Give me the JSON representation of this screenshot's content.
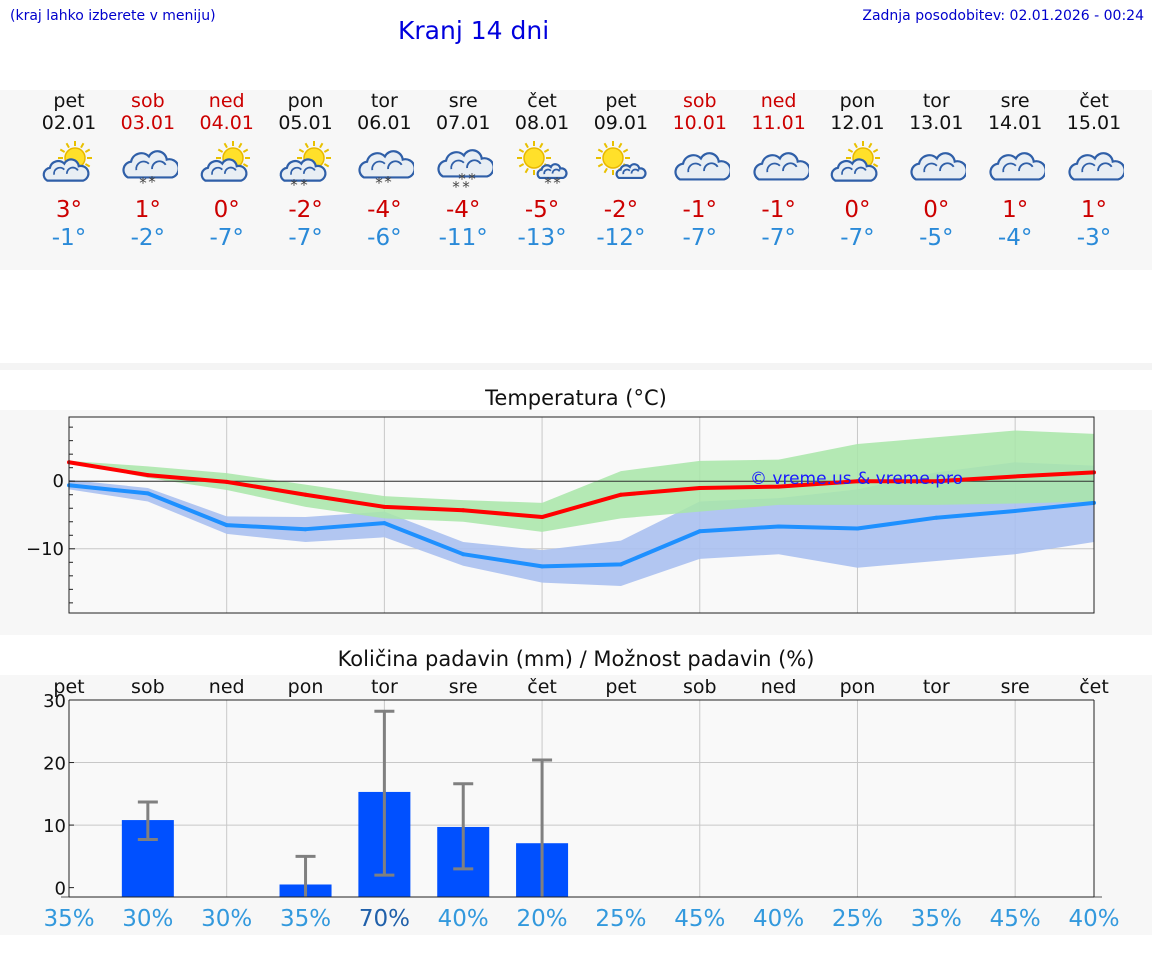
{
  "header": {
    "note": "(kraj lahko izberete v meniju)",
    "title": "Kranj 14 dni",
    "updated": "Zadnja posodobitev: 02.01.2026 - 00:24"
  },
  "days": [
    {
      "name": "pet",
      "date": "02.01",
      "weekend": false,
      "icon": "sun-cloud-icon",
      "tmax": "3°",
      "tmin": "-1°"
    },
    {
      "name": "sob",
      "date": "03.01",
      "weekend": true,
      "icon": "cloud-snow-icon",
      "tmax": "1°",
      "tmin": "-2°"
    },
    {
      "name": "ned",
      "date": "04.01",
      "weekend": true,
      "icon": "sun-cloud-icon",
      "tmax": "0°",
      "tmin": "-7°"
    },
    {
      "name": "pon",
      "date": "05.01",
      "weekend": false,
      "icon": "sun-cloud-snow-icon",
      "tmax": "-2°",
      "tmin": "-7°"
    },
    {
      "name": "tor",
      "date": "06.01",
      "weekend": false,
      "icon": "cloud-snow-icon",
      "tmax": "-4°",
      "tmin": "-6°"
    },
    {
      "name": "sre",
      "date": "07.01",
      "weekend": false,
      "icon": "cloud-heavy-snow-icon",
      "tmax": "-4°",
      "tmin": "-11°"
    },
    {
      "name": "čet",
      "date": "08.01",
      "weekend": false,
      "icon": "sun-small-cloud-snow-icon",
      "tmax": "-5°",
      "tmin": "-13°"
    },
    {
      "name": "pet",
      "date": "09.01",
      "weekend": false,
      "icon": "sun-small-cloud-icon",
      "tmax": "-2°",
      "tmin": "-12°"
    },
    {
      "name": "sob",
      "date": "10.01",
      "weekend": true,
      "icon": "cloud-icon",
      "tmax": "-1°",
      "tmin": "-7°"
    },
    {
      "name": "ned",
      "date": "11.01",
      "weekend": true,
      "icon": "cloud-icon",
      "tmax": "-1°",
      "tmin": "-7°"
    },
    {
      "name": "pon",
      "date": "12.01",
      "weekend": false,
      "icon": "sun-cloud-icon",
      "tmax": "0°",
      "tmin": "-7°"
    },
    {
      "name": "tor",
      "date": "13.01",
      "weekend": false,
      "icon": "cloud-icon",
      "tmax": "0°",
      "tmin": "-5°"
    },
    {
      "name": "sre",
      "date": "14.01",
      "weekend": false,
      "icon": "cloud-icon",
      "tmax": "1°",
      "tmin": "-4°"
    },
    {
      "name": "čet",
      "date": "15.01",
      "weekend": false,
      "icon": "cloud-icon",
      "tmax": "1°",
      "tmin": "-3°"
    }
  ],
  "colors": {
    "max_line": "#ff0000",
    "min_line": "#1e90ff",
    "max_band": "#a8e6a8",
    "min_band": "#aac0f0",
    "overlap_band": "#7fc4a0",
    "bar": "#0050ff",
    "error_bar": "#808080",
    "weekend": "#cc0000",
    "tmin_text": "#2a8ad8",
    "prob_text": "#3399dd",
    "prob_text_high": "#2060aa"
  },
  "chart_data": [
    {
      "type": "line",
      "title": "Temperatura (°C)",
      "watermark": "© vreme.us & vreme.pro",
      "x_days": [
        0,
        1,
        2,
        3,
        4,
        5,
        6,
        7,
        8,
        9,
        10,
        11,
        12,
        13
      ],
      "ylim": [
        -19.5,
        9.5
      ],
      "yticks": [
        0,
        -10
      ],
      "ytick_labels": [
        "0",
        "−10"
      ],
      "zero_line": true,
      "series": [
        {
          "name": "max",
          "x": [
            0,
            1,
            2,
            3,
            4,
            5,
            6,
            7,
            8,
            9,
            10,
            11,
            12,
            13
          ],
          "values": [
            2.8,
            0.9,
            -0.1,
            -2.0,
            -3.8,
            -4.3,
            -5.3,
            -2.0,
            -1.0,
            -0.8,
            0.0,
            0.0,
            0.7,
            1.3
          ],
          "band_low": [
            2.8,
            0.5,
            -1.3,
            -3.8,
            -5.5,
            -6.0,
            -7.5,
            -5.5,
            -4.5,
            -3.5,
            -3.5,
            -3.5,
            -3.3,
            -3.0
          ],
          "band_high": [
            3.0,
            2.2,
            1.2,
            -0.5,
            -2.2,
            -2.8,
            -3.2,
            1.5,
            3.0,
            3.2,
            5.5,
            6.5,
            7.5,
            7.0
          ]
        },
        {
          "name": "min",
          "x": [
            0,
            1,
            2,
            3,
            4,
            5,
            6,
            7,
            8,
            9,
            10,
            11,
            12,
            13
          ],
          "values": [
            -0.6,
            -1.8,
            -6.5,
            -7.1,
            -6.2,
            -10.8,
            -12.6,
            -12.3,
            -7.4,
            -6.7,
            -7.0,
            -5.4,
            -4.4,
            -3.2
          ],
          "band_low": [
            -1.2,
            -3.0,
            -7.8,
            -9.0,
            -8.3,
            -12.5,
            -15.0,
            -15.5,
            -11.5,
            -10.8,
            -12.8,
            -11.8,
            -10.8,
            -9.0
          ],
          "band_high": [
            0.2,
            -1.0,
            -5.2,
            -5.3,
            -4.5,
            -9.0,
            -10.2,
            -8.8,
            -3.0,
            -2.5,
            -1.2,
            1.3,
            2.8,
            2.3
          ]
        }
      ]
    },
    {
      "type": "bar",
      "title": "Količina padavin (mm) / Možnost padavin (%)",
      "categories": [
        "pet",
        "sob",
        "ned",
        "pon",
        "tor",
        "sre",
        "čet",
        "pet",
        "sob",
        "ned",
        "pon",
        "tor",
        "sre",
        "čet"
      ],
      "values": [
        0,
        10.8,
        0,
        0.5,
        15.3,
        9.7,
        7.1,
        0,
        0,
        0,
        0,
        0,
        0,
        0
      ],
      "error_low": [
        0,
        7.7,
        0,
        0,
        2.0,
        3.0,
        0,
        0,
        0,
        0,
        0,
        0,
        0,
        0
      ],
      "error_high": [
        0,
        13.7,
        0,
        5.0,
        28.2,
        16.6,
        20.4,
        0,
        0,
        0,
        0,
        0,
        0,
        0
      ],
      "probabilities": [
        "35%",
        "30%",
        "30%",
        "35%",
        "70%",
        "40%",
        "20%",
        "25%",
        "45%",
        "40%",
        "25%",
        "35%",
        "45%",
        "40%"
      ],
      "ylim": [
        -1.5,
        30
      ],
      "yticks": [
        0,
        10,
        20,
        30
      ],
      "ytick_labels": [
        "0",
        "10",
        "20",
        "30"
      ],
      "ylabel": "mm"
    }
  ]
}
